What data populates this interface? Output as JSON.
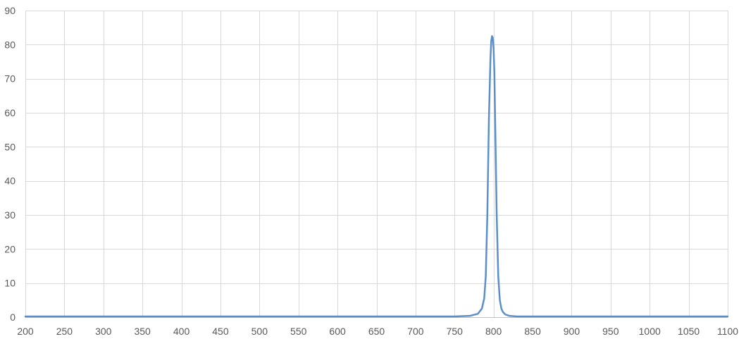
{
  "chart_data": {
    "type": "line",
    "title": "",
    "xlabel": "",
    "ylabel": "",
    "xlim": [
      200,
      1100
    ],
    "ylim": [
      0,
      90
    ],
    "x_ticks": [
      200,
      250,
      300,
      350,
      400,
      450,
      500,
      550,
      600,
      650,
      700,
      750,
      800,
      850,
      900,
      950,
      1000,
      1050,
      1100
    ],
    "y_ticks": [
      0,
      10,
      20,
      30,
      40,
      50,
      60,
      70,
      80,
      90
    ],
    "grid": true,
    "legend": "none",
    "series": [
      {
        "color": "#5b8fc9",
        "x": [
          200,
          300,
          400,
          500,
          600,
          700,
          750,
          770,
          780,
          785,
          788,
          790,
          792,
          794,
          796,
          797,
          798,
          799,
          800,
          801,
          802,
          804,
          806,
          808,
          810,
          812,
          815,
          820,
          830,
          850,
          900,
          1000,
          1100
        ],
        "y": [
          0.2,
          0.2,
          0.2,
          0.2,
          0.2,
          0.2,
          0.2,
          0.4,
          1.0,
          2.5,
          5.5,
          12.0,
          30.0,
          58.0,
          76.0,
          81.0,
          82.5,
          82.0,
          79.0,
          72.0,
          58.0,
          30.0,
          12.0,
          5.0,
          2.5,
          1.5,
          0.8,
          0.4,
          0.2,
          0.2,
          0.2,
          0.2,
          0.2
        ]
      }
    ]
  }
}
